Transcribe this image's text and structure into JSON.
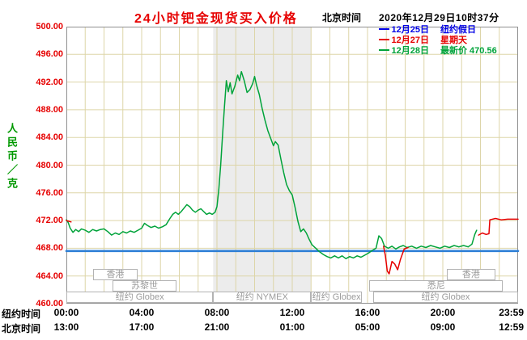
{
  "header": {
    "title": "24小时钯金现货买入价格",
    "clock_label": "北京时间",
    "clock_value": "2020年12月29日10时37分"
  },
  "legend": [
    {
      "date": "12月25日",
      "note": "纽约假日",
      "color": "#0000e6"
    },
    {
      "date": "12月27日",
      "note": "星期天",
      "color": "#e60000"
    },
    {
      "date": "12月28日",
      "note": "最新价 470.56",
      "color": "#00a33a"
    }
  ],
  "y_axis": {
    "unit": "人民币／克",
    "ticks": [
      "500.00",
      "496.00",
      "492.00",
      "488.00",
      "484.00",
      "480.00",
      "476.00",
      "472.00",
      "468.00",
      "464.00",
      "460.00"
    ]
  },
  "x_axis": {
    "rows": [
      {
        "label": "纽约时间",
        "ticks": [
          "00:00",
          "04:00",
          "08:00",
          "12:00",
          "16:00",
          "20:00",
          "23:59"
        ]
      },
      {
        "label": "北京时间",
        "ticks": [
          "13:00",
          "17:00",
          "21:00",
          "01:00",
          "05:00",
          "09:00",
          "12:59"
        ]
      }
    ],
    "tick_hours": [
      0,
      4,
      8,
      12,
      16,
      20,
      23.983
    ]
  },
  "sessions": [
    {
      "label": "香港",
      "row": 0,
      "from": 1.4,
      "to": 3.8
    },
    {
      "label": "香港",
      "row": 0,
      "from": 20.2,
      "to": 22.8
    },
    {
      "label": "苏黎世",
      "row": 1,
      "from": 2.45,
      "to": 5.85
    },
    {
      "label": "悉尼",
      "row": 1,
      "from": 16.1,
      "to": 23.2
    },
    {
      "label": "纽约 Globex",
      "row": 2,
      "from": 0,
      "to": 7.8
    },
    {
      "label": "纽约 NYMEX",
      "row": 2,
      "from": 7.8,
      "to": 13.0
    },
    {
      "label": "纽约 Globex",
      "row": 2,
      "from": 13.0,
      "to": 15.7
    },
    {
      "label": "纽约 Globex",
      "row": 2,
      "from": 16.3,
      "to": 24
    }
  ],
  "chart_data": {
    "type": "line",
    "title": "24小时钯金现货买入价格",
    "ylabel": "人民币／克",
    "ylim": [
      460,
      500
    ],
    "y_tick_step": 4,
    "x_hours_range": [
      0,
      24
    ],
    "x_grid_step_hours": 1,
    "grid_color": "#ddd5a8",
    "border_color": "#909090",
    "nymex_shaded_hours": [
      7.8,
      13.0
    ],
    "shade_color": "rgba(170,170,170,0.22)",
    "latest_price": 470.56,
    "series": [
      {
        "name": "12月25日",
        "note": "纽约假日",
        "color": "#2e7fd6",
        "width": 2.6,
        "segments": [
          [
            [
              0,
              467.6
            ],
            [
              24,
              467.6
            ]
          ]
        ]
      },
      {
        "name": "12月28日",
        "note": "最新价",
        "color": "#00a33a",
        "width": 1.5,
        "segments": [
          [
            [
              0.0,
              472.1
            ],
            [
              0.1,
              471.7
            ],
            [
              0.2,
              470.9
            ],
            [
              0.35,
              470.3
            ],
            [
              0.5,
              470.7
            ],
            [
              0.65,
              470.4
            ],
            [
              0.8,
              470.8
            ],
            [
              1.0,
              470.6
            ],
            [
              1.2,
              470.3
            ],
            [
              1.4,
              470.7
            ],
            [
              1.6,
              470.5
            ],
            [
              1.8,
              470.7
            ],
            [
              2.0,
              470.8
            ],
            [
              2.2,
              470.4
            ],
            [
              2.4,
              469.9
            ],
            [
              2.6,
              470.2
            ],
            [
              2.8,
              470.0
            ],
            [
              3.0,
              470.4
            ],
            [
              3.2,
              470.2
            ],
            [
              3.4,
              470.5
            ],
            [
              3.6,
              470.3
            ],
            [
              3.8,
              470.6
            ],
            [
              4.0,
              470.9
            ],
            [
              4.15,
              471.6
            ],
            [
              4.3,
              471.3
            ],
            [
              4.5,
              471.0
            ],
            [
              4.7,
              471.2
            ],
            [
              4.9,
              470.9
            ],
            [
              5.1,
              471.1
            ],
            [
              5.3,
              471.4
            ],
            [
              5.5,
              472.3
            ],
            [
              5.65,
              472.9
            ],
            [
              5.8,
              473.2
            ],
            [
              5.95,
              472.9
            ],
            [
              6.1,
              473.3
            ],
            [
              6.25,
              473.8
            ],
            [
              6.4,
              474.3
            ],
            [
              6.55,
              474.0
            ],
            [
              6.7,
              473.5
            ],
            [
              6.85,
              473.2
            ],
            [
              7.0,
              473.5
            ],
            [
              7.15,
              473.7
            ],
            [
              7.3,
              473.3
            ],
            [
              7.45,
              472.9
            ],
            [
              7.6,
              473.1
            ],
            [
              7.75,
              472.9
            ],
            [
              7.9,
              473.2
            ],
            [
              8.0,
              474.0
            ],
            [
              8.1,
              476.5
            ],
            [
              8.2,
              480.0
            ],
            [
              8.3,
              484.5
            ],
            [
              8.4,
              488.5
            ],
            [
              8.5,
              492.2
            ],
            [
              8.6,
              490.6
            ],
            [
              8.7,
              491.9
            ],
            [
              8.8,
              490.3
            ],
            [
              8.95,
              491.4
            ],
            [
              9.1,
              493.0
            ],
            [
              9.2,
              492.2
            ],
            [
              9.3,
              493.5
            ],
            [
              9.45,
              492.2
            ],
            [
              9.6,
              490.5
            ],
            [
              9.75,
              490.9
            ],
            [
              9.9,
              491.8
            ],
            [
              10.0,
              492.8
            ],
            [
              10.1,
              491.6
            ],
            [
              10.25,
              490.2
            ],
            [
              10.4,
              488.2
            ],
            [
              10.55,
              486.5
            ],
            [
              10.7,
              485.0
            ],
            [
              10.85,
              483.9
            ],
            [
              11.0,
              482.8
            ],
            [
              11.1,
              483.4
            ],
            [
              11.25,
              482.9
            ],
            [
              11.4,
              480.8
            ],
            [
              11.55,
              478.9
            ],
            [
              11.7,
              477.2
            ],
            [
              11.85,
              476.3
            ],
            [
              12.0,
              475.7
            ],
            [
              12.15,
              473.9
            ],
            [
              12.3,
              471.9
            ],
            [
              12.45,
              470.4
            ],
            [
              12.6,
              470.8
            ],
            [
              12.75,
              470.2
            ],
            [
              12.9,
              469.3
            ],
            [
              13.05,
              468.5
            ],
            [
              13.25,
              468.0
            ],
            [
              13.45,
              467.5
            ],
            [
              13.65,
              467.1
            ],
            [
              13.85,
              466.8
            ],
            [
              14.05,
              466.6
            ],
            [
              14.25,
              466.9
            ],
            [
              14.45,
              466.6
            ],
            [
              14.65,
              466.9
            ],
            [
              14.85,
              466.5
            ],
            [
              15.05,
              466.8
            ],
            [
              15.25,
              466.6
            ],
            [
              15.45,
              466.9
            ],
            [
              15.65,
              466.7
            ],
            [
              15.85,
              467.0
            ],
            [
              16.05,
              467.3
            ],
            [
              16.25,
              467.7
            ],
            [
              16.45,
              468.0
            ],
            [
              16.6,
              469.8
            ],
            [
              16.75,
              469.4
            ],
            [
              16.9,
              468.3
            ],
            [
              17.1,
              468.0
            ],
            [
              17.3,
              468.3
            ],
            [
              17.5,
              467.9
            ],
            [
              17.7,
              468.2
            ],
            [
              17.9,
              468.4
            ],
            [
              18.1,
              468.1
            ],
            [
              18.35,
              468.3
            ],
            [
              18.6,
              468.0
            ],
            [
              18.85,
              468.3
            ],
            [
              19.1,
              468.1
            ],
            [
              19.35,
              468.4
            ],
            [
              19.6,
              468.2
            ],
            [
              19.85,
              468.0
            ],
            [
              20.1,
              468.3
            ],
            [
              20.35,
              468.1
            ],
            [
              20.6,
              468.4
            ],
            [
              20.85,
              468.2
            ],
            [
              21.1,
              468.4
            ],
            [
              21.35,
              468.2
            ],
            [
              21.55,
              468.6
            ],
            [
              21.7,
              470.0
            ],
            [
              21.8,
              470.6
            ]
          ]
        ]
      },
      {
        "name": "12月27日",
        "note": "星期天",
        "color": "#e60000",
        "width": 1.5,
        "segments": [
          [
            [
              0.0,
              472.0
            ],
            [
              0.25,
              471.8
            ]
          ],
          [
            [
              16.85,
              468.3
            ],
            [
              16.95,
              466.9
            ],
            [
              17.05,
              464.7
            ],
            [
              17.15,
              464.3
            ],
            [
              17.3,
              466.1
            ],
            [
              17.45,
              465.7
            ],
            [
              17.6,
              464.9
            ],
            [
              17.75,
              466.4
            ],
            [
              17.95,
              467.9
            ],
            [
              18.15,
              468.1
            ]
          ],
          [
            [
              21.9,
              469.9
            ],
            [
              22.1,
              470.2
            ],
            [
              22.3,
              470.0
            ],
            [
              22.45,
              470.1
            ],
            [
              22.5,
              472.1
            ],
            [
              22.8,
              472.3
            ],
            [
              23.1,
              472.1
            ],
            [
              23.45,
              472.2
            ],
            [
              23.75,
              472.2
            ],
            [
              24.0,
              472.2
            ]
          ]
        ]
      }
    ]
  }
}
